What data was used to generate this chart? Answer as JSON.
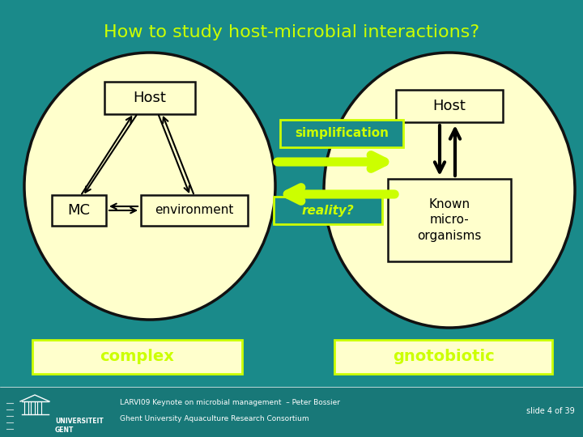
{
  "bg_color": "#1a8a8a",
  "title": "How to study host-microbial interactions?",
  "title_color": "#ccff00",
  "title_fontsize": 16,
  "ellipse_fill": "#ffffcc",
  "ellipse_edge": "#111111",
  "box_fill": "#ffffcc",
  "box_edge": "#111111",
  "arrow_color": "#ccff00",
  "text_black": "#000000",
  "footer_color": "#187878",
  "footer_text1": "LARVI09 Keynote on microbial management  – Peter Bossier",
  "footer_text2": "Ghent University Aquaculture Research Consortium",
  "slide_text": "slide 4 of 39",
  "complex_label": "complex",
  "gnotobiotic_label": "gnotobiotic",
  "simplification_label": "simplification",
  "reality_label": "reality?"
}
